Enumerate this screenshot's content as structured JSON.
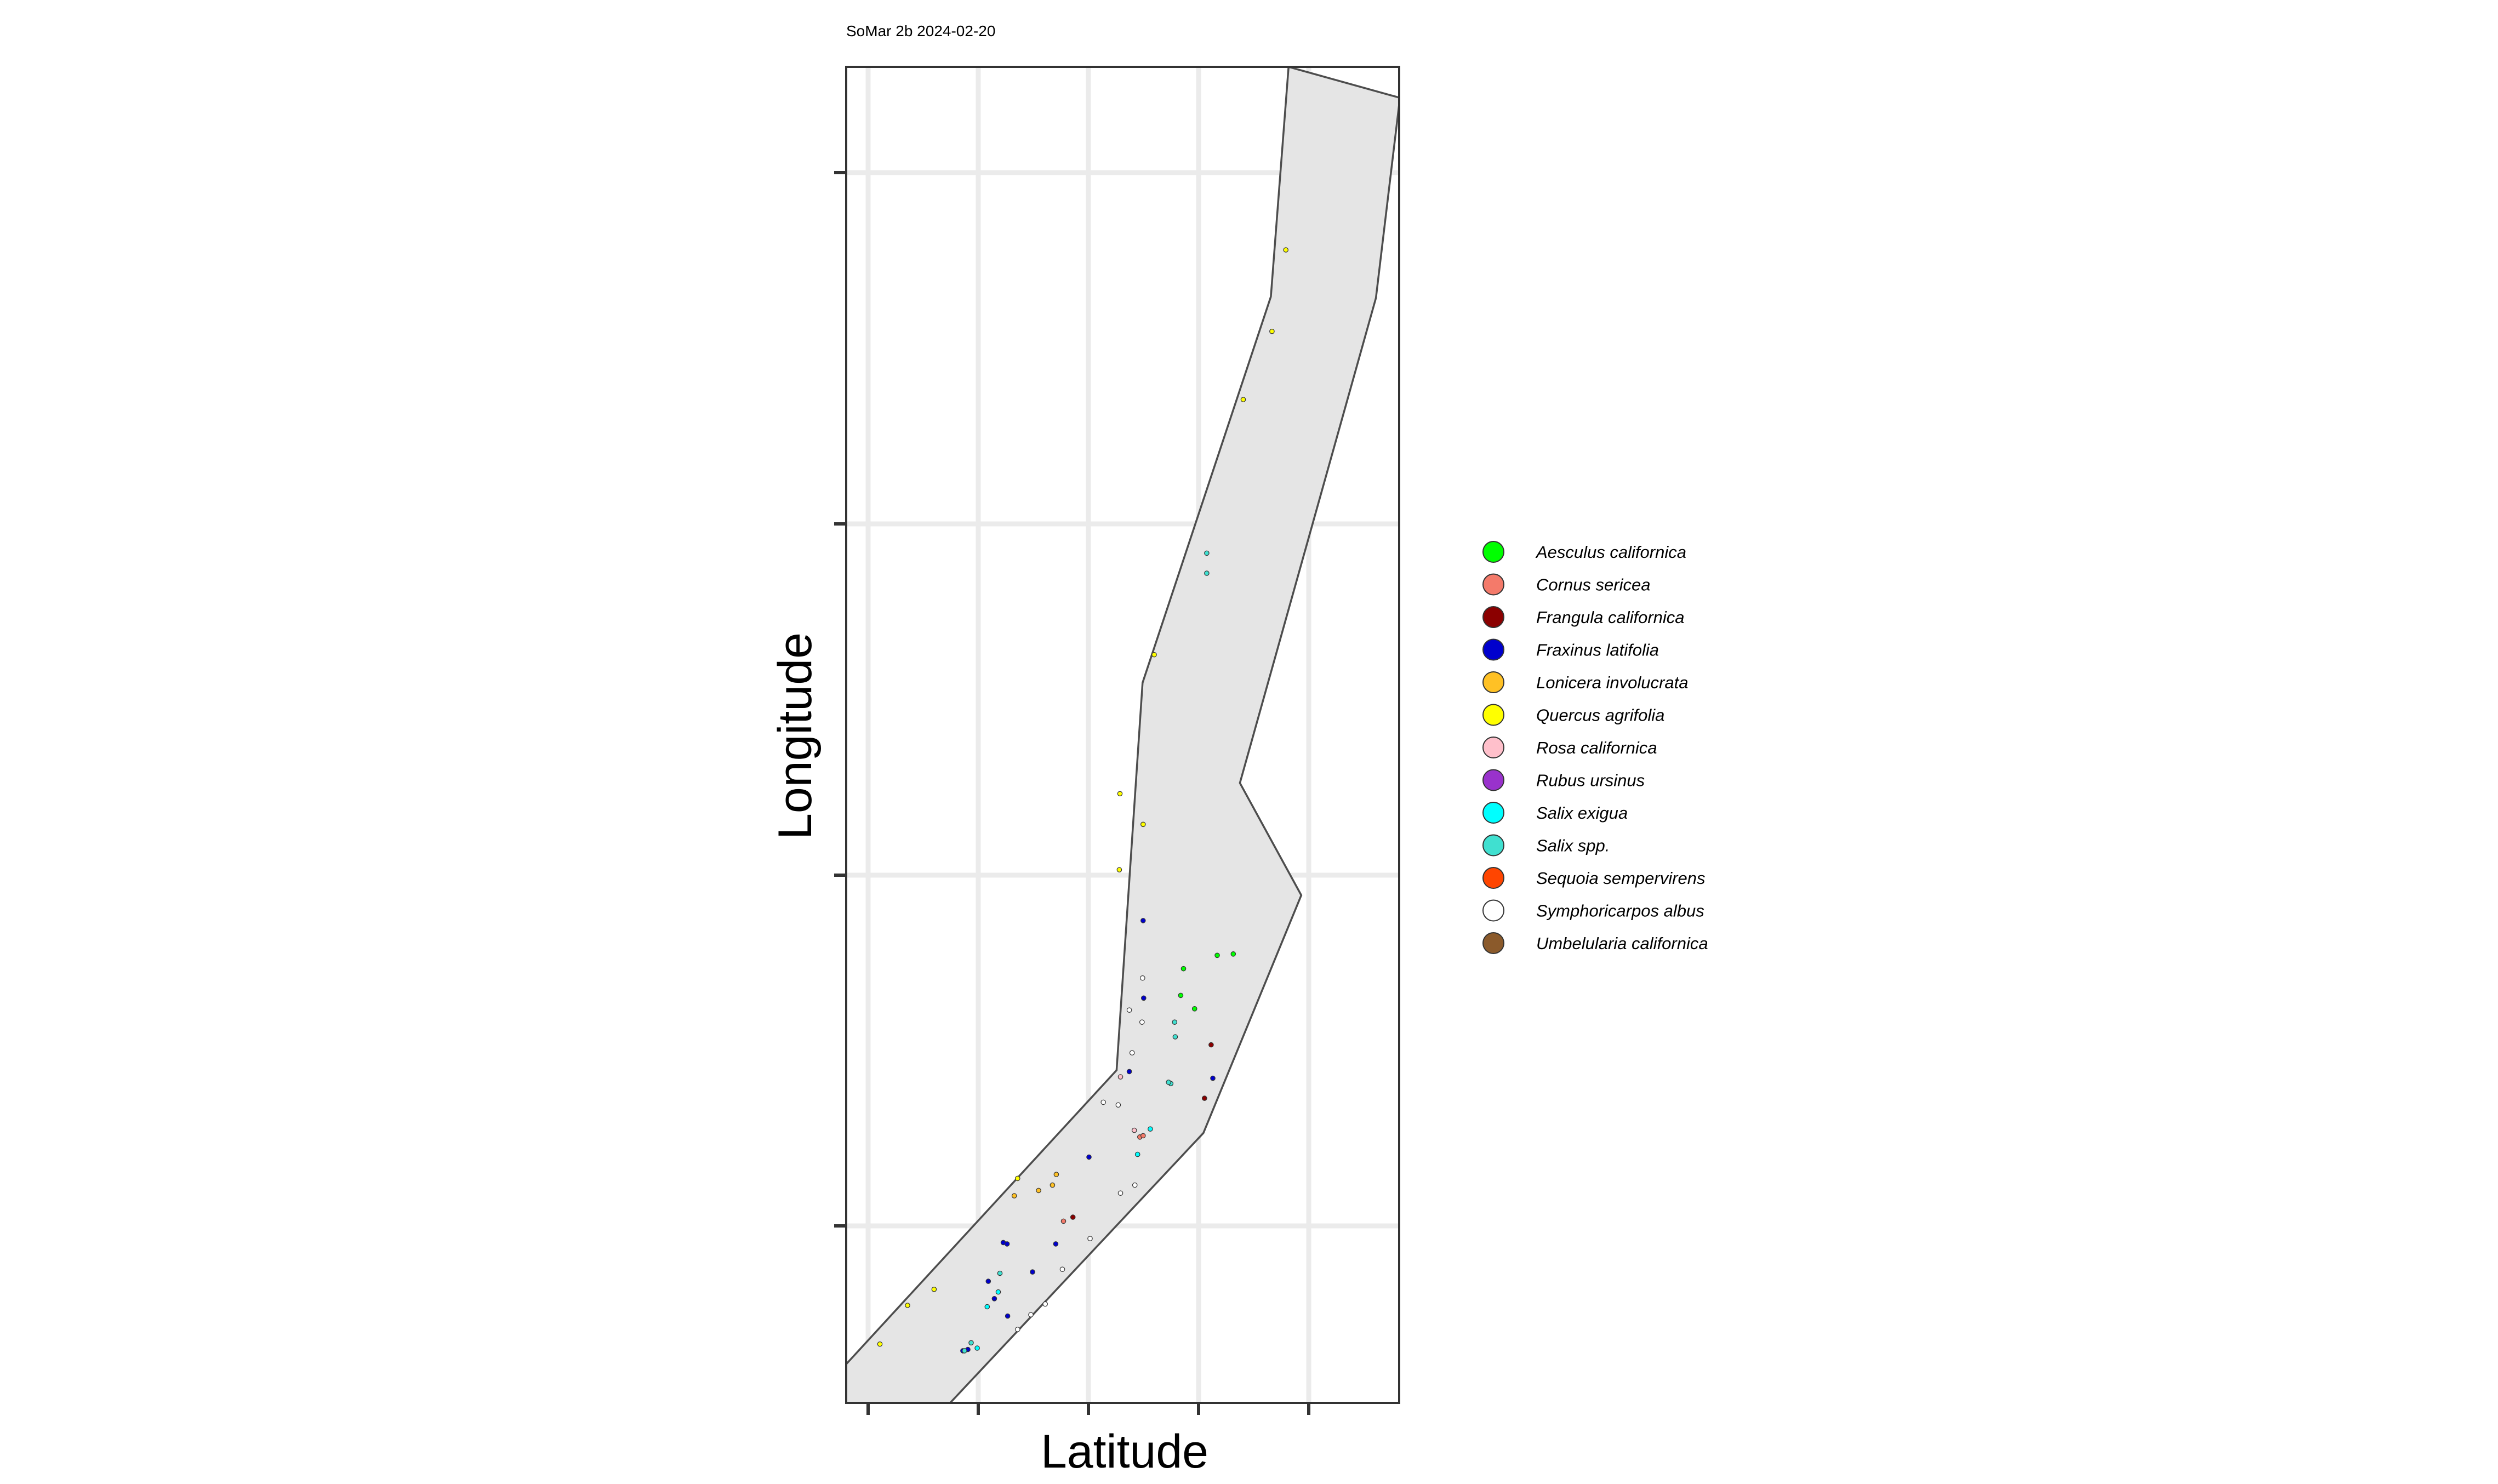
{
  "chart_data": {
    "type": "scatter",
    "subtitle": "SoMar 2b 2024-02-20",
    "xlabel": "Latitude",
    "ylabel": "Longitude",
    "xlim": [
      0,
      100
    ],
    "ylim": [
      0,
      100
    ],
    "grid": true,
    "legend_position": "right",
    "colors": {
      "panel_background": "#ffffff",
      "grid": "#ebebeb",
      "polygon_fill": "#e5e5e5",
      "polygon_stroke": "#4d4d4d",
      "panel_border": "#333333",
      "ticks": "#333333"
    },
    "polygon": [
      [
        80,
        100
      ],
      [
        100,
        97.7
      ],
      [
        100,
        97.2
      ],
      [
        95.8,
        82.7
      ],
      [
        71.2,
        46.4
      ],
      [
        82.3,
        38.0
      ],
      [
        64.6,
        20.2
      ],
      [
        18.8,
        0
      ],
      [
        0,
        0
      ],
      [
        0,
        2.9
      ],
      [
        48.9,
        24.9
      ],
      [
        53.6,
        53.9
      ],
      [
        76.8,
        82.8
      ],
      [
        80,
        100
      ]
    ],
    "series": [
      {
        "name": "Aesculus californica",
        "color": "#00ff00",
        "points": [
          [
            61.0,
            32.5
          ],
          [
            67.1,
            33.5
          ],
          [
            70.0,
            33.6
          ],
          [
            63.0,
            29.5
          ],
          [
            60.5,
            30.5
          ]
        ]
      },
      {
        "name": "Cornus sericea",
        "color": "#f47a6a",
        "points": [
          [
            53.1,
            19.9
          ],
          [
            39.3,
            13.6
          ],
          [
            53.7,
            20.0
          ]
        ]
      },
      {
        "name": "Frangula californica",
        "color": "#8b0000",
        "points": [
          [
            64.8,
            22.8
          ],
          [
            66.0,
            26.8
          ],
          [
            41.0,
            13.9
          ]
        ]
      },
      {
        "name": "Fraxinus latifolia",
        "color": "#0000cd",
        "points": [
          [
            53.7,
            36.1
          ],
          [
            53.8,
            30.3
          ],
          [
            51.2,
            24.8
          ],
          [
            43.9,
            18.4
          ],
          [
            66.3,
            24.3
          ],
          [
            28.4,
            12.0
          ],
          [
            29.1,
            11.9
          ],
          [
            25.7,
            9.1
          ],
          [
            26.8,
            7.8
          ],
          [
            21.1,
            3.9
          ],
          [
            22.0,
            4.0
          ],
          [
            37.9,
            11.9
          ],
          [
            33.7,
            9.8
          ],
          [
            29.2,
            6.5
          ]
        ]
      },
      {
        "name": "Lonicera involucrata",
        "color": "#ffc125",
        "points": [
          [
            38.0,
            17.1
          ],
          [
            37.3,
            16.3
          ],
          [
            34.8,
            15.9
          ],
          [
            30.4,
            15.5
          ]
        ]
      },
      {
        "name": "Quercus agrifolia",
        "color": "#ffff00",
        "points": [
          [
            79.5,
            86.3
          ],
          [
            77.0,
            80.2
          ],
          [
            71.8,
            75.1
          ],
          [
            55.7,
            56.0
          ],
          [
            49.5,
            45.6
          ],
          [
            53.7,
            43.3
          ],
          [
            49.4,
            39.9
          ],
          [
            31.0,
            16.8
          ],
          [
            15.9,
            8.5
          ],
          [
            11.1,
            7.3
          ],
          [
            6.1,
            4.4
          ]
        ]
      },
      {
        "name": "Rosa californica",
        "color": "#ffc0cb",
        "points": [
          [
            52.1,
            20.4
          ],
          [
            49.6,
            24.4
          ]
        ]
      },
      {
        "name": "Rubus ursinus",
        "color": "#9932cc",
        "points": []
      },
      {
        "name": "Salix exigua",
        "color": "#00ffff",
        "points": [
          [
            52.7,
            18.6
          ],
          [
            55.0,
            20.5
          ],
          [
            25.5,
            7.2
          ],
          [
            23.7,
            4.1
          ],
          [
            27.5,
            8.3
          ]
        ]
      },
      {
        "name": "Salix spp.",
        "color": "#40e0d0",
        "points": [
          [
            65.2,
            63.6
          ],
          [
            65.2,
            62.1
          ],
          [
            59.4,
            28.5
          ],
          [
            58.7,
            23.9
          ],
          [
            58.3,
            24.0
          ],
          [
            59.5,
            27.4
          ],
          [
            21.4,
            3.9
          ],
          [
            22.6,
            4.5
          ],
          [
            27.8,
            9.7
          ]
        ]
      },
      {
        "name": "Sequoia sempervirens",
        "color": "#ff4500",
        "points": []
      },
      {
        "name": "Symphoricarpos albus",
        "color": "#ffffff",
        "points": [
          [
            53.6,
            31.8
          ],
          [
            51.2,
            29.4
          ],
          [
            53.5,
            28.5
          ],
          [
            51.7,
            26.2
          ],
          [
            46.5,
            22.5
          ],
          [
            49.2,
            22.3
          ],
          [
            52.2,
            16.3
          ],
          [
            49.6,
            15.7
          ],
          [
            44.1,
            12.3
          ],
          [
            39.1,
            10.0
          ],
          [
            33.4,
            6.6
          ],
          [
            31.0,
            5.5
          ],
          [
            36.0,
            7.4
          ]
        ]
      },
      {
        "name": "Umbelularia californica",
        "color": "#8b5a2b",
        "points": []
      }
    ]
  }
}
